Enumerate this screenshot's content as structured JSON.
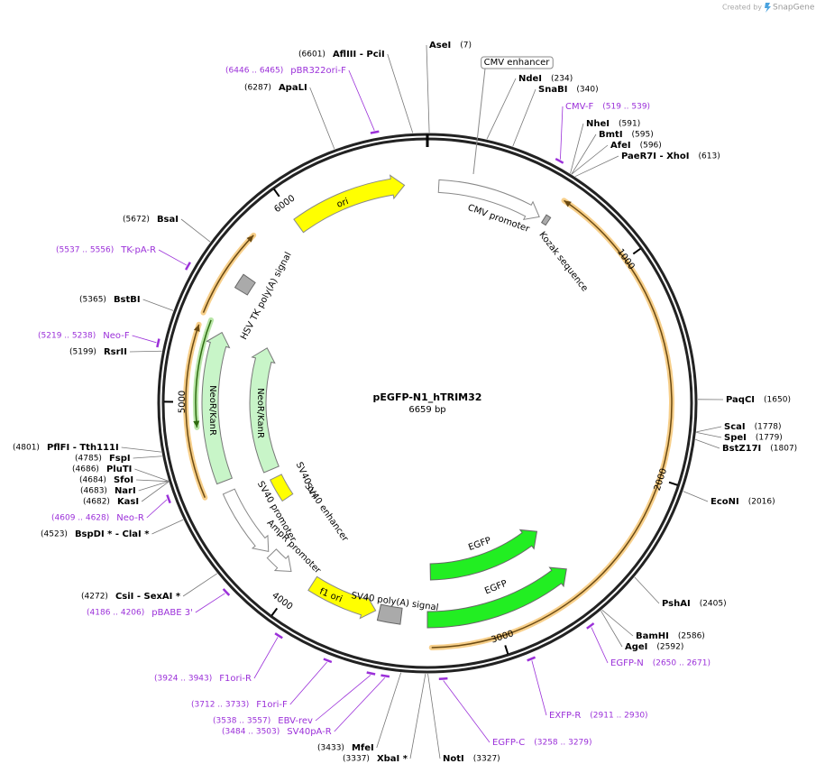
{
  "watermark": {
    "prefix": "Created by",
    "brand": "SnapGene"
  },
  "plasmid": {
    "name": "pEGFP-N1_hTRIM32",
    "length": {
      "value": 6659,
      "label": "6659 bp"
    }
  },
  "ruler_ticks": [
    1000,
    2000,
    3000,
    4000,
    5000,
    6000
  ],
  "sites": [
    {
      "name": "AseI",
      "position": "(7)"
    },
    {
      "name": "NdeI",
      "position": "(234)"
    },
    {
      "name": "SnaBI",
      "position": "(340)"
    },
    {
      "name": "NheI",
      "position": "(591)"
    },
    {
      "name": "BmtI",
      "position": "(595)"
    },
    {
      "name": "AfeI",
      "position": "(596)"
    },
    {
      "name": "PaeR7I  - XhoI",
      "position": "(613)"
    },
    {
      "name": "PaqCI",
      "position": "(1650)"
    },
    {
      "name": "ScaI",
      "position": "(1778)"
    },
    {
      "name": "SpeI",
      "position": "(1779)"
    },
    {
      "name": "BstZ17I",
      "position": "(1807)"
    },
    {
      "name": "EcoNI",
      "position": "(2016)"
    },
    {
      "name": "PshAI",
      "position": "(2405)"
    },
    {
      "name": "BamHI",
      "position": "(2586)"
    },
    {
      "name": "AgeI",
      "position": "(2592)"
    },
    {
      "name": "NotI",
      "position": "(3327)"
    },
    {
      "name": "XbaI *",
      "position": "(3337)"
    },
    {
      "name": "MfeI",
      "position": "(3433)"
    },
    {
      "name": "CsiI  - SexAI *",
      "position": "(4272)"
    },
    {
      "name": "BspDI *  - ClaI *",
      "position": "(4523)"
    },
    {
      "name": "KasI",
      "position": "(4682)"
    },
    {
      "name": "NarI",
      "position": "(4683)"
    },
    {
      "name": "SfoI",
      "position": "(4684)"
    },
    {
      "name": "PluTI",
      "position": "(4686)"
    },
    {
      "name": "FspI",
      "position": "(4785)"
    },
    {
      "name": "PflFI  - Tth111I",
      "position": "(4801)"
    },
    {
      "name": "RsrII",
      "position": "(5199)"
    },
    {
      "name": "BstBI",
      "position": "(5365)"
    },
    {
      "name": "BsaI",
      "position": "(5672)"
    },
    {
      "name": "ApaLI",
      "position": "(6287)"
    },
    {
      "name": "AflIII  - PciI",
      "position": "(6601)"
    }
  ],
  "primers": [
    {
      "name": "CMV-F",
      "range": "(519 .. 539)"
    },
    {
      "name": "EGFP-N",
      "range": "(2650 .. 2671)"
    },
    {
      "name": "EXFP-R",
      "range": "(2911 .. 2930)"
    },
    {
      "name": "EGFP-C",
      "range": "(3258 .. 3279)"
    },
    {
      "name": "SV40pA-R",
      "range": "(3484 .. 3503)"
    },
    {
      "name": "EBV-rev",
      "range": "(3538 .. 3557)"
    },
    {
      "name": "F1ori-F",
      "range": "(3712 .. 3733)"
    },
    {
      "name": "F1ori-R",
      "range": "(3924 .. 3943)"
    },
    {
      "name": "pBABE 3'",
      "range": "(4186 .. 4206)"
    },
    {
      "name": "Neo-R",
      "range": "(4609 .. 4628)"
    },
    {
      "name": "Neo-F",
      "range": "(5219 .. 5238)"
    },
    {
      "name": "TK-pA-R",
      "range": "(5537 .. 5556)"
    },
    {
      "name": "pBR322ori-F",
      "range": "(6446 .. 6465)"
    }
  ],
  "features": [
    {
      "label": "CMV enhancer"
    },
    {
      "label": "CMV promoter"
    },
    {
      "label": "Kozak sequence"
    },
    {
      "label": "ori"
    },
    {
      "label": "HSV TK poly(A) signal"
    },
    {
      "label": "NeoR/KanR"
    },
    {
      "label": "NeoR/KanR"
    },
    {
      "label": "SV40 ori"
    },
    {
      "label": "SV40 enhancer"
    },
    {
      "label": "SV40 promoter"
    },
    {
      "label": "AmpR promoter"
    },
    {
      "label": "f1 ori"
    },
    {
      "label": "SV40 poly(A) signal"
    },
    {
      "label": "EGFP"
    },
    {
      "label": "EGFP"
    }
  ]
}
